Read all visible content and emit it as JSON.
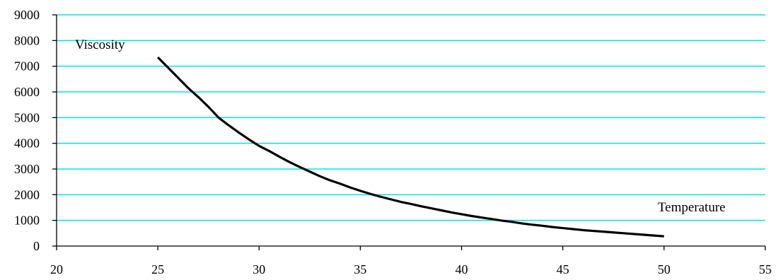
{
  "chart_data": {
    "type": "line",
    "title": "",
    "xlabel": "Temperature",
    "ylabel": "Viscosity",
    "xlim": [
      20,
      55
    ],
    "ylim": [
      0,
      9000
    ],
    "x_ticks": [
      20,
      25,
      30,
      35,
      40,
      45,
      50,
      55
    ],
    "y_ticks": [
      0,
      1000,
      2000,
      3000,
      4000,
      5000,
      6000,
      7000,
      8000,
      9000
    ],
    "grid": "horizontal",
    "grid_color": "#00e5e5",
    "line_color": "#000000",
    "legend": "none",
    "series": [
      {
        "values": [
          [
            25.0,
            7350
          ],
          [
            25.5,
            6950
          ],
          [
            26.0,
            6550
          ],
          [
            26.5,
            6150
          ],
          [
            27.0,
            5800
          ],
          [
            27.5,
            5420
          ],
          [
            28.0,
            5000
          ],
          [
            28.5,
            4700
          ],
          [
            29.0,
            4420
          ],
          [
            29.5,
            4150
          ],
          [
            30.0,
            3900
          ],
          [
            30.5,
            3700
          ],
          [
            31.0,
            3480
          ],
          [
            31.5,
            3270
          ],
          [
            32.0,
            3080
          ],
          [
            32.5,
            2900
          ],
          [
            33.0,
            2720
          ],
          [
            33.5,
            2560
          ],
          [
            34.0,
            2430
          ],
          [
            34.5,
            2280
          ],
          [
            35.0,
            2150
          ],
          [
            35.5,
            2030
          ],
          [
            36.0,
            1920
          ],
          [
            36.5,
            1820
          ],
          [
            37.0,
            1720
          ],
          [
            37.5,
            1640
          ],
          [
            38.0,
            1550
          ],
          [
            38.5,
            1470
          ],
          [
            39.0,
            1390
          ],
          [
            39.5,
            1310
          ],
          [
            40.0,
            1240
          ],
          [
            40.5,
            1170
          ],
          [
            41.0,
            1110
          ],
          [
            41.5,
            1050
          ],
          [
            42.0,
            990
          ],
          [
            42.5,
            940
          ],
          [
            43.0,
            880
          ],
          [
            43.5,
            830
          ],
          [
            44.0,
            790
          ],
          [
            44.5,
            740
          ],
          [
            45.0,
            700
          ],
          [
            45.5,
            660
          ],
          [
            46.0,
            620
          ],
          [
            46.5,
            590
          ],
          [
            47.0,
            560
          ],
          [
            47.5,
            530
          ],
          [
            48.0,
            500
          ],
          [
            48.5,
            470
          ],
          [
            49.0,
            440
          ],
          [
            49.5,
            410
          ],
          [
            50.0,
            380
          ]
        ]
      }
    ]
  }
}
